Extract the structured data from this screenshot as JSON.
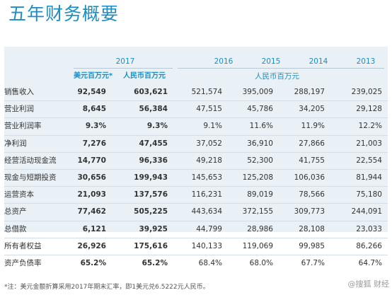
{
  "title": "五年财务概要",
  "header": {
    "year_2017": "2017",
    "year_2016": "2016",
    "year_2015": "2015",
    "year_2014": "2014",
    "year_2013": "2013",
    "unit_usd": "美元百万元*",
    "unit_rmb": "人民币百万元",
    "unit_rmb_right": "人民币百万元"
  },
  "rows": [
    {
      "label": "销售收入",
      "usd": "92,549",
      "rmb2017": "603,621",
      "y2016": "521,574",
      "y2015": "395,009",
      "y2014": "288,197",
      "y2013": "239,025"
    },
    {
      "label": "营业利润",
      "usd": "8,645",
      "rmb2017": "56,384",
      "y2016": "47,515",
      "y2015": "45,786",
      "y2014": "34,205",
      "y2013": "29,128"
    },
    {
      "label": "营业利润率",
      "usd": "9.3%",
      "rmb2017": "9.3%",
      "y2016": "9.1%",
      "y2015": "11.6%",
      "y2014": "11.9%",
      "y2013": "12.2%"
    },
    {
      "label": "净利润",
      "usd": "7,276",
      "rmb2017": "47,455",
      "y2016": "37,052",
      "y2015": "36,910",
      "y2014": "27,866",
      "y2013": "21,003"
    },
    {
      "label": "经营活动现金流",
      "usd": "14,770",
      "rmb2017": "96,336",
      "y2016": "49,218",
      "y2015": "52,300",
      "y2014": "41,755",
      "y2013": "22,554"
    },
    {
      "label": "现金与短期投资",
      "usd": "30,656",
      "rmb2017": "199,943",
      "y2016": "145,653",
      "y2015": "125,208",
      "y2014": "106,036",
      "y2013": "81,944"
    },
    {
      "label": "运营资本",
      "usd": "21,093",
      "rmb2017": "137,576",
      "y2016": "116,231",
      "y2015": "89,019",
      "y2014": "78,566",
      "y2013": "75,180"
    },
    {
      "label": "总资产",
      "usd": "77,462",
      "rmb2017": "505,225",
      "y2016": "443,634",
      "y2015": "372,155",
      "y2014": "309,773",
      "y2013": "244,091"
    },
    {
      "label": "总借款",
      "usd": "6,121",
      "rmb2017": "39,925",
      "y2016": "44,799",
      "y2015": "28,986",
      "y2014": "28,108",
      "y2013": "23,033"
    },
    {
      "label": "所有者权益",
      "usd": "26,926",
      "rmb2017": "175,616",
      "y2016": "140,133",
      "y2015": "119,069",
      "y2014": "99,985",
      "y2013": "86,266"
    },
    {
      "label": "资产负债率",
      "usd": "65.2%",
      "rmb2017": "65.2%",
      "y2016": "68.4%",
      "y2015": "68.0%",
      "y2014": "67.7%",
      "y2013": "64.7%"
    }
  ],
  "footnote": "*注：美元金额折算采用2017年期末汇率，即1美元兑6.5222元人民币。",
  "watermark": "@搜狐 财经"
}
